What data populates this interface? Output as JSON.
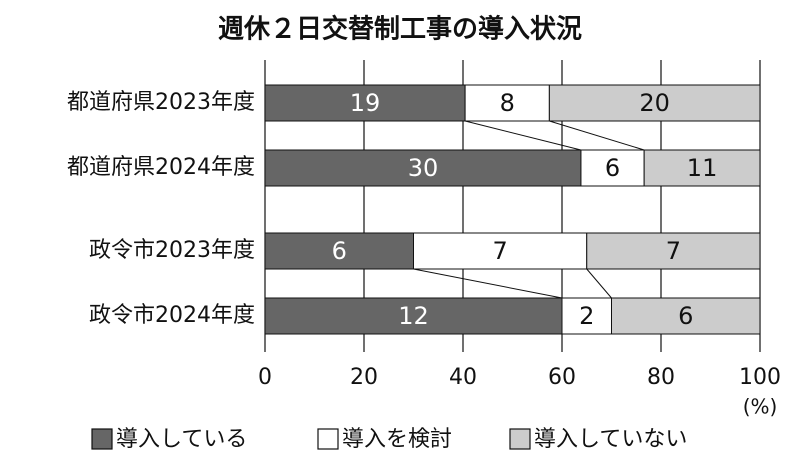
{
  "chart_data": {
    "type": "bar",
    "orientation": "horizontal",
    "stacked": true,
    "normalize": true,
    "title": "週休２日交替制工事の導入状況",
    "categories": [
      "都道府県2023年度",
      "都道府県2024年度",
      "政令市2023年度",
      "政令市2024年度"
    ],
    "series": [
      {
        "name": "導入している",
        "color": "#666666",
        "values": [
          19,
          30,
          6,
          12
        ]
      },
      {
        "name": "導入を検討",
        "color": "#ffffff",
        "values": [
          8,
          6,
          7,
          2
        ]
      },
      {
        "name": "導入していない",
        "color": "#cccccc",
        "values": [
          20,
          11,
          7,
          6
        ]
      }
    ],
    "xlim": [
      0,
      100
    ],
    "xticks": [
      0,
      20,
      40,
      60,
      80,
      100
    ],
    "x_unit": "(%)",
    "grid": true,
    "legend": "bottom"
  }
}
